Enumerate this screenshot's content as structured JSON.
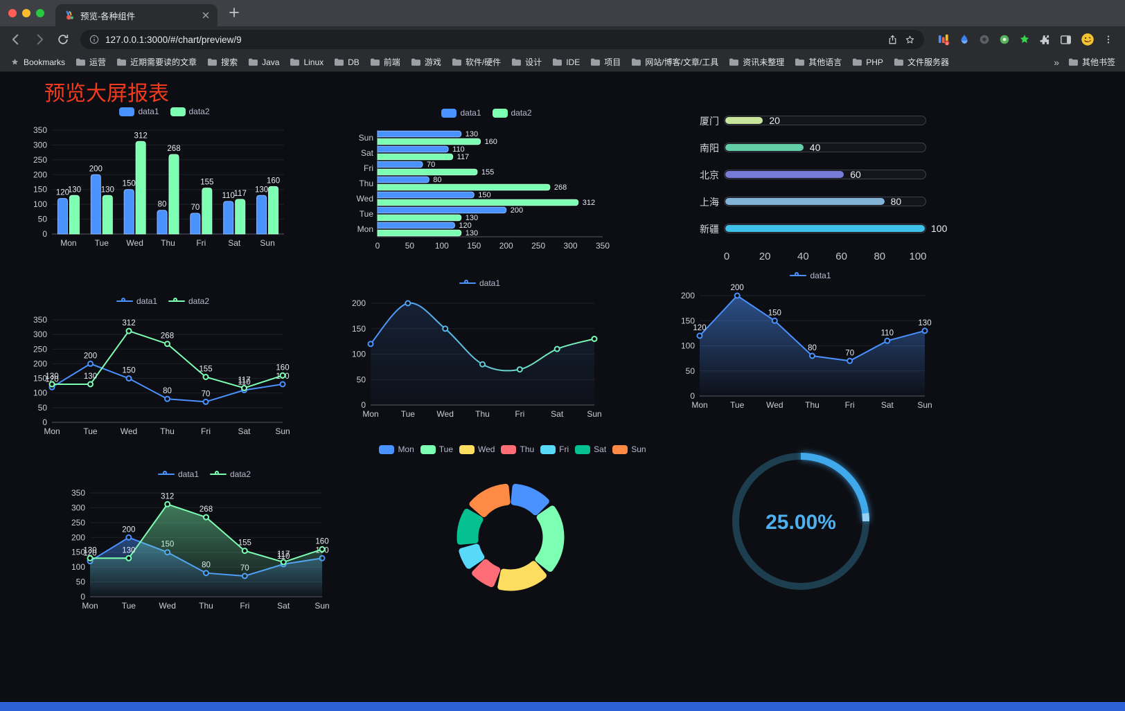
{
  "browser": {
    "tab": {
      "title": "预览-各种组件"
    },
    "address": {
      "url": "127.0.0.1:3000/#/chart/preview/9"
    },
    "bookmarks_bar": {
      "label": "Bookmarks",
      "folders": [
        "运营",
        "近期需要读的文章",
        "搜索",
        "Java",
        "Linux",
        "DB",
        "前端",
        "游戏",
        "软件/硬件",
        "设计",
        "IDE",
        "项目",
        "网站/博客/文章/工具",
        "资讯未整理",
        "其他语言",
        "PHP",
        "文件服务器"
      ],
      "overflow": "»",
      "other": "其他书签"
    }
  },
  "page": {
    "title": "预览大屏报表"
  },
  "chart_data": [
    {
      "id": "grouped-bar",
      "type": "bar",
      "categories": [
        "Mon",
        "Tue",
        "Wed",
        "Thu",
        "Fri",
        "Sat",
        "Sun"
      ],
      "series": [
        {
          "name": "data1",
          "color": "#4992ff",
          "values": [
            120,
            200,
            150,
            80,
            70,
            110,
            130
          ]
        },
        {
          "name": "data2",
          "color": "#7cffb2",
          "values": [
            130,
            130,
            312,
            268,
            155,
            117,
            160
          ]
        }
      ],
      "ylim": [
        0,
        350
      ],
      "ytick_step": 50,
      "value_labels": true,
      "legend_position": "top",
      "grid": true
    },
    {
      "id": "horizontal-bar",
      "type": "bar-horizontal",
      "categories": [
        "Mon",
        "Tue",
        "Wed",
        "Thu",
        "Fri",
        "Sat",
        "Sun"
      ],
      "categories_displayed_top_to_bottom": [
        "Sun",
        "Sat",
        "Fri",
        "Thu",
        "Wed",
        "Tue",
        "Mon"
      ],
      "series": [
        {
          "name": "data1",
          "color": "#4992ff",
          "values": [
            120,
            200,
            150,
            80,
            70,
            110,
            130
          ]
        },
        {
          "name": "data2",
          "color": "#7cffb2",
          "values": [
            130,
            130,
            312,
            268,
            155,
            117,
            160
          ]
        }
      ],
      "xlim": [
        0,
        350
      ],
      "xtick_step": 50,
      "value_labels": true,
      "legend_position": "top"
    },
    {
      "id": "progress-bars",
      "type": "progress",
      "categories": [
        "厦门",
        "南阳",
        "北京",
        "上海",
        "新疆"
      ],
      "values": [
        20,
        40,
        60,
        80,
        100
      ],
      "colors": [
        "#c8e59b",
        "#62cfa9",
        "#797bd9",
        "#84b3d8",
        "#3fc1e9"
      ],
      "max": 100,
      "xticks": [
        0,
        20,
        40,
        60,
        80,
        100
      ]
    },
    {
      "id": "multi-line",
      "type": "line",
      "categories": [
        "Mon",
        "Tue",
        "Wed",
        "Thu",
        "Fri",
        "Sat",
        "Sun"
      ],
      "series": [
        {
          "name": "data1",
          "color": "#4992ff",
          "values": [
            120,
            200,
            150,
            80,
            70,
            110,
            130
          ]
        },
        {
          "name": "data2",
          "color": "#7cffb2",
          "values": [
            130,
            130,
            312,
            268,
            155,
            117,
            160
          ]
        }
      ],
      "ylim": [
        0,
        350
      ],
      "ytick_step": 50,
      "value_labels": true,
      "smooth": false,
      "legend_position": "top"
    },
    {
      "id": "gradient-line",
      "type": "line",
      "categories": [
        "Mon",
        "Tue",
        "Wed",
        "Thu",
        "Fri",
        "Sat",
        "Sun"
      ],
      "series": [
        {
          "name": "data1",
          "gradient": [
            "#4992ff",
            "#7cffb2"
          ],
          "values": [
            120,
            200,
            150,
            80,
            70,
            110,
            130
          ],
          "area": true,
          "area_opacity": 0.14
        }
      ],
      "ylim": [
        0,
        200
      ],
      "ytick_step": 50,
      "value_labels": false,
      "smooth": true,
      "legend_position": "top"
    },
    {
      "id": "single-area",
      "type": "line",
      "categories": [
        "Mon",
        "Tue",
        "Wed",
        "Thu",
        "Fri",
        "Sat",
        "Sun"
      ],
      "series": [
        {
          "name": "data1",
          "color": "#4992ff",
          "values": [
            120,
            200,
            150,
            80,
            70,
            110,
            130
          ],
          "area": true,
          "area_opacity": 0.5
        }
      ],
      "ylim": [
        0,
        200
      ],
      "ytick_step": 50,
      "value_labels": true,
      "smooth": false,
      "legend_position": "top"
    },
    {
      "id": "multi-area",
      "type": "line",
      "categories": [
        "Mon",
        "Tue",
        "Wed",
        "Thu",
        "Fri",
        "Sat",
        "Sun"
      ],
      "series": [
        {
          "name": "data1",
          "color": "#4992ff",
          "values": [
            120,
            200,
            150,
            80,
            70,
            110,
            130
          ],
          "area": true,
          "area_opacity": 0.45
        },
        {
          "name": "data2",
          "color": "#7cffb2",
          "values": [
            130,
            130,
            312,
            268,
            155,
            117,
            160
          ],
          "area": true,
          "area_opacity": 0.45
        }
      ],
      "ylim": [
        0,
        350
      ],
      "ytick_step": 50,
      "value_labels": true,
      "smooth": false,
      "legend_position": "top"
    },
    {
      "id": "donut",
      "type": "pie",
      "categories": [
        "Mon",
        "Tue",
        "Wed",
        "Thu",
        "Fri",
        "Sat",
        "Sun"
      ],
      "values": [
        120,
        200,
        150,
        80,
        70,
        110,
        130
      ],
      "colors": [
        "#4992ff",
        "#7cffb2",
        "#fddd60",
        "#ff6e76",
        "#58d9f9",
        "#05c091",
        "#ff8a45"
      ],
      "legend_position": "top",
      "inner_radius": true,
      "rounded_corners": true
    },
    {
      "id": "gauge",
      "type": "gauge",
      "value": 25,
      "max": 100,
      "display": "25.00%",
      "color": "#3fa9ec",
      "track_color": "#1d3e4e"
    }
  ]
}
